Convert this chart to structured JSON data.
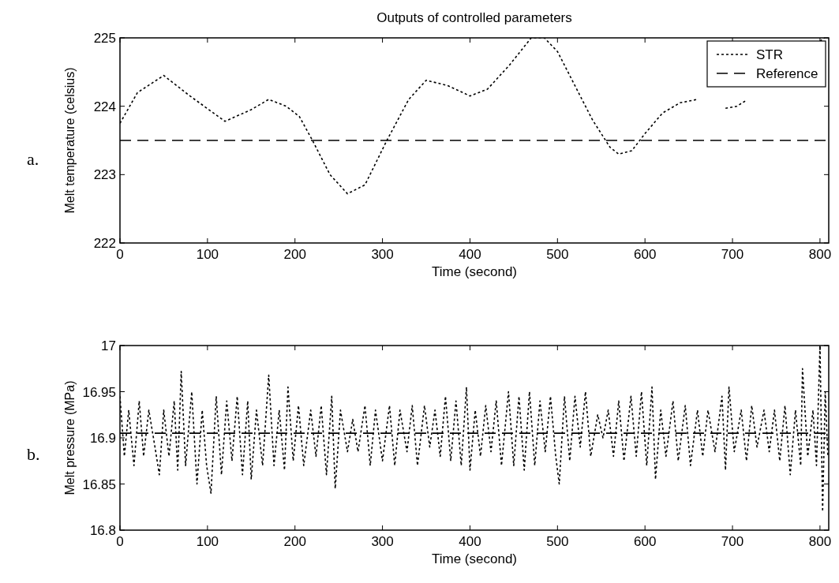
{
  "chart_data": [
    {
      "type": "line",
      "title": "Outputs of controlled parameters",
      "xlabel": "Time (second)",
      "ylabel": "Melt temperature (celsius)",
      "annotations": [
        "a."
      ],
      "xlim": [
        0,
        810
      ],
      "xticks": [
        0,
        100,
        200,
        300,
        400,
        500,
        600,
        700,
        800
      ],
      "ylim": [
        222,
        225
      ],
      "yticks": [
        222,
        223,
        224,
        225
      ],
      "grid": false,
      "legend": "top right",
      "marker": "none",
      "series": [
        {
          "name": "STR",
          "color": "#000000",
          "line_style": "dotted",
          "x": [
            0,
            20,
            50,
            80,
            120,
            150,
            170,
            190,
            205,
            220,
            240,
            260,
            280,
            305,
            330,
            350,
            375,
            400,
            420,
            445,
            470,
            485,
            500,
            520,
            540,
            560,
            570,
            585,
            600,
            620,
            640,
            660,
            675,
            692,
            705,
            715,
            740,
            800,
            805
          ],
          "values": [
            223.75,
            224.2,
            224.45,
            224.15,
            223.78,
            223.95,
            224.1,
            224.0,
            223.85,
            223.5,
            223.0,
            222.72,
            222.85,
            223.5,
            224.1,
            224.38,
            224.3,
            224.15,
            224.25,
            224.6,
            225.0,
            225.0,
            224.8,
            224.3,
            223.8,
            223.4,
            223.3,
            223.35,
            223.6,
            223.9,
            224.05,
            224.1,
            null,
            223.97,
            224.0,
            224.08,
            null,
            224.95,
            225.0
          ]
        },
        {
          "name": "Reference",
          "color": "#000000",
          "line_style": "dashed",
          "x": [
            0,
            810
          ],
          "values": [
            223.5,
            223.5
          ]
        }
      ]
    },
    {
      "type": "line",
      "xlabel": "Time (second)",
      "ylabel": "Melt pressure (MPa)",
      "annotations": [
        "b."
      ],
      "xlim": [
        0,
        810
      ],
      "xticks": [
        0,
        100,
        200,
        300,
        400,
        500,
        600,
        700,
        800
      ],
      "ylim": [
        16.8,
        17
      ],
      "yticks": [
        16.8,
        16.85,
        16.9,
        16.95,
        17
      ],
      "grid": false,
      "legend": false,
      "marker": "none",
      "series": [
        {
          "color": "#000000",
          "line_style": "dotted",
          "x": [
            0,
            5,
            10,
            16,
            22,
            27,
            33,
            40,
            45,
            50,
            56,
            62,
            66,
            70,
            75,
            82,
            88,
            94,
            99,
            104,
            110,
            116,
            122,
            128,
            134,
            140,
            146,
            150,
            156,
            163,
            170,
            176,
            182,
            188,
            192,
            198,
            204,
            210,
            218,
            224,
            230,
            236,
            242,
            246,
            252,
            260,
            266,
            272,
            280,
            286,
            292,
            300,
            308,
            314,
            320,
            328,
            334,
            340,
            348,
            354,
            360,
            366,
            372,
            378,
            384,
            390,
            396,
            400,
            406,
            412,
            418,
            424,
            430,
            436,
            444,
            450,
            456,
            462,
            468,
            474,
            480,
            486,
            492,
            498,
            502,
            508,
            514,
            520,
            526,
            532,
            538,
            546,
            552,
            558,
            564,
            570,
            576,
            584,
            590,
            596,
            602,
            608,
            612,
            618,
            624,
            632,
            638,
            646,
            652,
            660,
            666,
            672,
            680,
            688,
            692,
            696,
            702,
            710,
            716,
            722,
            728,
            736,
            742,
            748,
            754,
            760,
            766,
            772,
            778,
            780,
            786,
            792,
            796,
            800,
            803,
            806,
            809
          ],
          "values": [
            16.945,
            16.88,
            16.93,
            16.87,
            16.94,
            16.88,
            16.93,
            16.89,
            16.86,
            16.93,
            16.88,
            16.94,
            16.865,
            16.972,
            16.87,
            16.95,
            16.85,
            16.93,
            16.87,
            16.84,
            16.945,
            16.86,
            16.94,
            16.875,
            16.945,
            16.86,
            16.94,
            16.855,
            16.93,
            16.87,
            16.968,
            16.87,
            16.93,
            16.865,
            16.955,
            16.875,
            16.935,
            16.87,
            16.93,
            16.88,
            16.935,
            16.86,
            16.945,
            16.845,
            16.93,
            16.885,
            16.92,
            16.885,
            16.935,
            16.87,
            16.93,
            16.875,
            16.935,
            16.87,
            16.93,
            16.885,
            16.935,
            16.87,
            16.935,
            16.89,
            16.93,
            16.88,
            16.945,
            16.875,
            16.94,
            16.87,
            16.955,
            16.865,
            16.93,
            16.88,
            16.935,
            16.885,
            16.94,
            16.87,
            16.95,
            16.87,
            16.945,
            16.865,
            16.95,
            16.87,
            16.94,
            16.885,
            16.945,
            16.88,
            16.85,
            16.945,
            16.875,
            16.945,
            16.89,
            16.95,
            16.88,
            16.925,
            16.9,
            16.93,
            16.88,
            16.94,
            16.875,
            16.945,
            16.88,
            16.95,
            16.87,
            16.955,
            16.855,
            16.93,
            16.88,
            16.94,
            16.875,
            16.935,
            16.87,
            16.93,
            16.88,
            16.93,
            16.885,
            16.945,
            16.865,
            16.955,
            16.885,
            16.93,
            16.875,
            16.935,
            16.89,
            16.93,
            16.885,
            16.93,
            16.875,
            16.935,
            16.86,
            16.93,
            16.87,
            16.975,
            16.88,
            16.93,
            16.87,
            17.0,
            16.82,
            16.95,
            16.88
          ]
        },
        {
          "color": "#000000",
          "line_style": "dashed",
          "x": [
            0,
            810
          ],
          "values": [
            16.905,
            16.905
          ]
        }
      ]
    }
  ]
}
